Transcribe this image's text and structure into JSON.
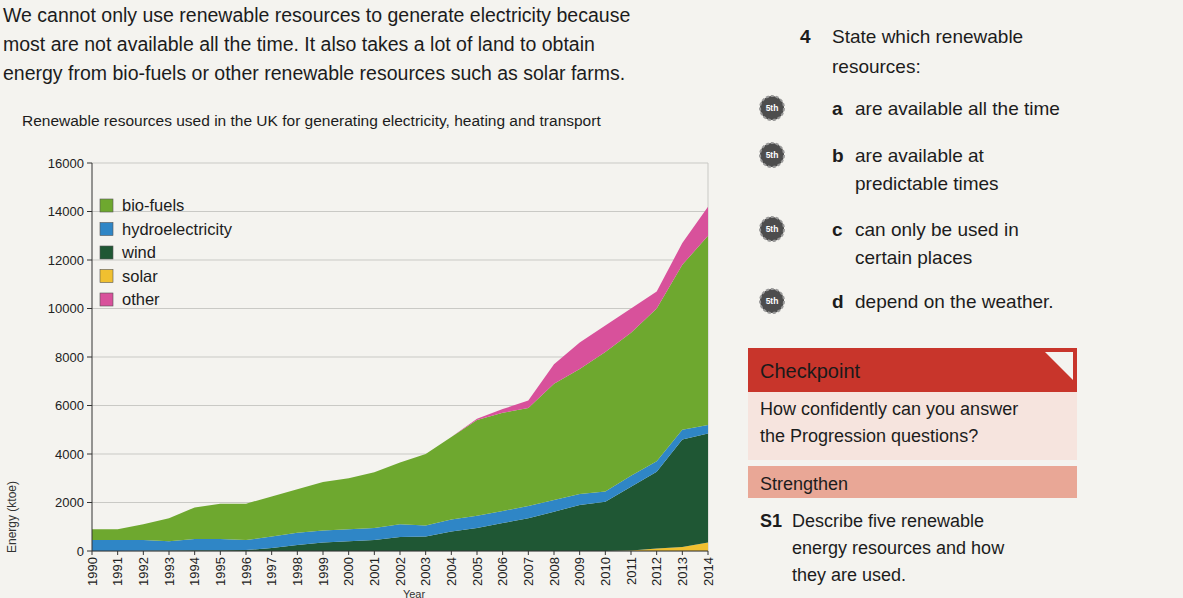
{
  "page": {
    "intro": [
      "We cannot only use renewable resources to generate electricity because",
      "most are not available all the time. It also takes a lot of land to obtain",
      "energy from bio-fuels or other renewable resources such as solar farms."
    ],
    "question": {
      "number": "4",
      "text": [
        "State which renewable",
        "resources:"
      ],
      "parts": [
        {
          "letter": "a",
          "badge": "5th",
          "text": [
            "are available all the time"
          ]
        },
        {
          "letter": "b",
          "badge": "5th",
          "text": [
            "are available at",
            "predictable times"
          ]
        },
        {
          "letter": "c",
          "badge": "5th",
          "text": [
            "can only be used in",
            "certain places"
          ]
        },
        {
          "letter": "d",
          "badge": "5th",
          "text": [
            "depend on the weather."
          ]
        }
      ]
    },
    "checkpoint": {
      "title": "Checkpoint",
      "text": [
        "How confidently can you answer",
        "the Progression questions?"
      ]
    },
    "strengthen": {
      "title": "Strengthen",
      "item": {
        "number": "S1",
        "text": [
          "Describe five renewable",
          "energy resources and how",
          "they are used."
        ]
      }
    }
  },
  "chart_data": {
    "type": "area",
    "stacked": true,
    "title": "Renewable resources used in the UK for generating electricity, heating and transport",
    "x_label": "Year",
    "y_label": "Energy (ktoe)",
    "x": [
      1990,
      1991,
      1992,
      1993,
      1994,
      1995,
      1996,
      1997,
      1998,
      1999,
      2000,
      2001,
      2002,
      2003,
      2004,
      2005,
      2006,
      2007,
      2008,
      2009,
      2010,
      2011,
      2012,
      2013,
      2014
    ],
    "xlim": [
      1990,
      2014
    ],
    "xticks": [
      1990,
      1991,
      1992,
      1993,
      1994,
      1995,
      1996,
      1997,
      1998,
      1999,
      2000,
      2001,
      2002,
      2003,
      2004,
      2005,
      2006,
      2007,
      2008,
      2009,
      2010,
      2011,
      2012,
      2013,
      2014
    ],
    "ylim": [
      0,
      16000
    ],
    "yticks": [
      0,
      2000,
      4000,
      6000,
      8000,
      10000,
      12000,
      14000,
      16000
    ],
    "grid": true,
    "legend": "top-left",
    "series": [
      {
        "name": "bio-fuels",
        "color": "#6ea82f",
        "values": [
          450,
          450,
          650,
          950,
          1300,
          1450,
          1500,
          1650,
          1800,
          2000,
          2100,
          2300,
          2550,
          2950,
          3400,
          3950,
          4050,
          4050,
          4800,
          5150,
          5750,
          5900,
          6300,
          6800,
          7800
        ]
      },
      {
        "name": "hydroelectricity",
        "color": "#2f86c6",
        "values": [
          450,
          450,
          440,
          380,
          470,
          470,
          410,
          480,
          500,
          500,
          500,
          500,
          520,
          450,
          500,
          500,
          500,
          500,
          480,
          450,
          420,
          450,
          430,
          400,
          350
        ]
      },
      {
        "name": "wind",
        "color": "#1f5734",
        "values": [
          0,
          0,
          10,
          20,
          30,
          30,
          40,
          120,
          250,
          350,
          400,
          450,
          580,
          600,
          800,
          950,
          1150,
          1350,
          1620,
          1900,
          2030,
          2630,
          3170,
          4430,
          4500
        ]
      },
      {
        "name": "solar",
        "color": "#f0c030",
        "values": [
          0,
          0,
          0,
          0,
          0,
          0,
          0,
          0,
          0,
          0,
          0,
          0,
          0,
          0,
          0,
          0,
          0,
          0,
          0,
          0,
          0,
          20,
          100,
          170,
          350
        ]
      },
      {
        "name": "other",
        "color": "#d8519b",
        "values": [
          0,
          0,
          0,
          0,
          0,
          0,
          0,
          0,
          0,
          0,
          0,
          0,
          0,
          0,
          0,
          50,
          150,
          300,
          800,
          1100,
          1100,
          1000,
          700,
          900,
          1200
        ]
      }
    ]
  }
}
